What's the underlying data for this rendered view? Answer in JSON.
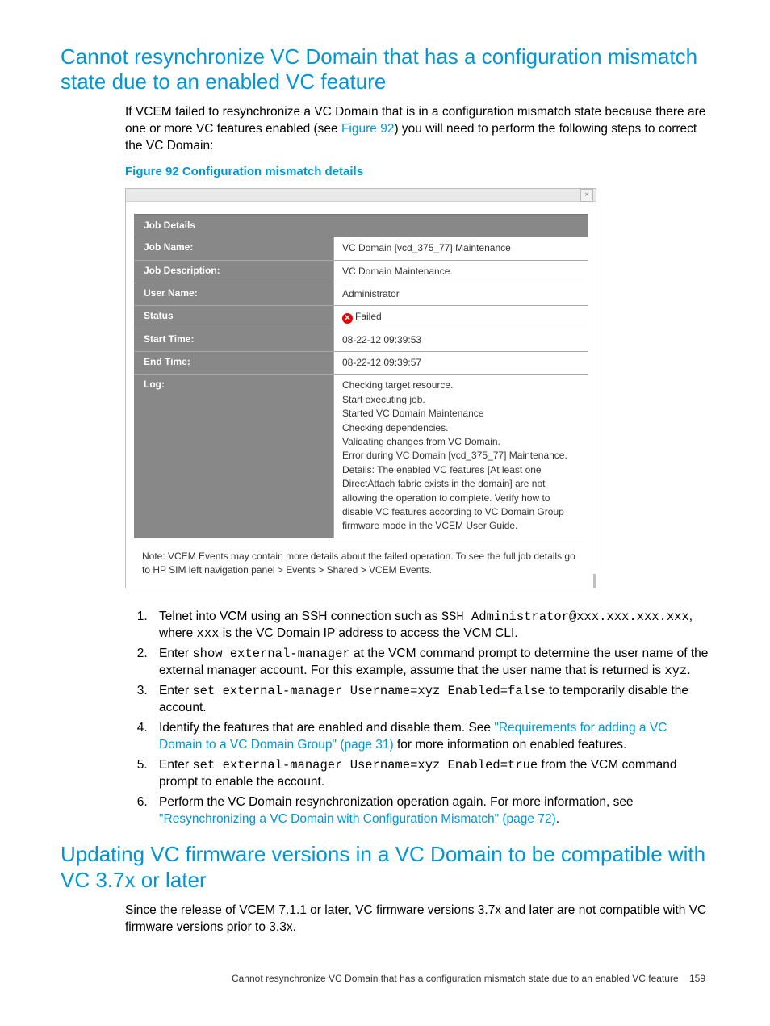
{
  "heading1": "Cannot resynchronize VC Domain that has a configuration mismatch state due to an enabled VC feature",
  "intro": {
    "pre": "If VCEM failed to resynchronize a VC Domain that is in a configuration mismatch state because there are one or more VC features enabled (see ",
    "link": "Figure 92",
    "post": ") you will need to perform the following steps to correct the VC Domain:"
  },
  "figure_caption": "Figure 92 Configuration mismatch details",
  "dialog": {
    "close": "×",
    "section_title": "Job Details",
    "rows": {
      "job_name": {
        "label": "Job Name:",
        "value": "VC Domain [vcd_375_77] Maintenance"
      },
      "job_desc": {
        "label": "Job Description:",
        "value": "VC Domain Maintenance."
      },
      "user": {
        "label": "User Name:",
        "value": "Administrator"
      },
      "status": {
        "label": "Status",
        "value": "Failed"
      },
      "start": {
        "label": "Start Time:",
        "value": "08-22-12 09:39:53"
      },
      "end": {
        "label": "End Time:",
        "value": "08-22-12 09:39:57"
      },
      "log": {
        "label": "Log:",
        "value": "Checking target resource.\nStart executing job.\nStarted VC Domain Maintenance\nChecking dependencies.\nValidating changes from VC Domain.\nError during VC Domain [vcd_375_77] Maintenance. Details: The enabled VC features [At least one DirectAttach fabric exists in the domain] are not allowing the operation to complete. Verify how to disable VC features according to VC Domain Group firmware mode in the VCEM User Guide."
      }
    },
    "fail_icon": "✕",
    "note": "Note: VCEM Events may contain more details about the failed operation. To see the full job details go to HP SIM left navigation panel > Events > Shared > VCEM Events."
  },
  "steps": {
    "s1": {
      "t1": "Telnet into VCM using an SSH connection such as ",
      "c1": "SSH Administrator@xxx.xxx.xxx.xxx",
      "t2": ", where ",
      "c2": "xxx",
      "t3": " is the VC Domain IP address to access the VCM CLI."
    },
    "s2": {
      "t1": "Enter ",
      "c1": "show external-manager",
      "t2": " at the VCM command prompt to determine the user name of the external manager account. For this example, assume that the user name that is returned is ",
      "c2": "xyz",
      "t3": "."
    },
    "s3": {
      "t1": "Enter ",
      "c1": "set external-manager Username=xyz Enabled=false",
      "t2": " to temporarily disable the account."
    },
    "s4": {
      "t1": "Identify the features that are enabled and disable them. See ",
      "link": "\"Requirements for adding a VC Domain to a VC Domain Group\" (page 31)",
      "t2": " for more information on enabled features."
    },
    "s5": {
      "t1": "Enter ",
      "c1": "set external-manager Username=xyz Enabled=true",
      "t2": " from the VCM command prompt to enable the account."
    },
    "s6": {
      "t1": "Perform the VC Domain resynchronization operation again. For more information, see ",
      "link": "\"Resynchronizing a VC Domain with Configuration Mismatch\" (page 72)",
      "t2": "."
    }
  },
  "heading2": "Updating VC firmware versions in a VC Domain to be compatible with VC 3.7x or later",
  "para2": "Since the release of VCEM 7.1.1 or later, VC firmware versions 3.7x and later are not compatible with VC firmware versions prior to 3.3x.",
  "footer": {
    "text": "Cannot resynchronize VC Domain that has a configuration mismatch state due to an enabled VC feature",
    "page": "159"
  }
}
